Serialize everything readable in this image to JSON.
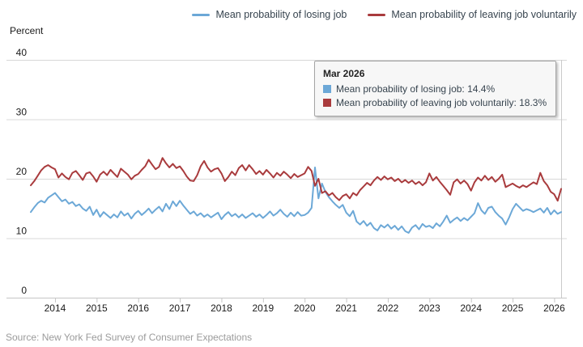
{
  "legend": {
    "items": [
      {
        "label": "Mean probability of losing job",
        "color": "#6CA8D7"
      },
      {
        "label": "Mean probability of leaving job voluntarily",
        "color": "#A93B3D"
      }
    ]
  },
  "axis": {
    "y_title": "Percent",
    "y_ticks": [
      40,
      30,
      20,
      10,
      0
    ],
    "x_ticks": [
      "2014",
      "2015",
      "2016",
      "2017",
      "2018",
      "2019",
      "2020",
      "2021",
      "2022",
      "2023",
      "2024",
      "2025",
      "2026"
    ]
  },
  "tooltip": {
    "title": "Mar 2026",
    "items": [
      {
        "text": "Mean probability of losing job: 14.4%",
        "value": "14.4%",
        "color": "#6CA8D7"
      },
      {
        "text": "Mean probability of leaving job voluntarily: 18.3%",
        "value": "18.3%",
        "color": "#A93B3D"
      }
    ]
  },
  "source": "Source: New York Fed Survey of Consumer Expectations",
  "colors": {
    "gridline": "#d8d8d8",
    "axis_line": "#c6c6c6",
    "tick_mark": "#c6c6c6",
    "crosshair": "#cacaca",
    "tick_label": "#1a1a1a"
  },
  "chart_data": {
    "type": "line",
    "title": "",
    "ylabel": "Percent",
    "ylim": [
      0,
      40
    ],
    "grid": true,
    "legend_position": "top-right",
    "x_start": "2013-06",
    "x_end": "2026-03",
    "frequency": "monthly",
    "highlighted_point": {
      "date": "Mar 2026",
      "losing_job": 14.4,
      "leaving_voluntarily": 18.3
    },
    "series": [
      {
        "name": "Mean probability of losing job",
        "color": "#6CA8D7",
        "values": [
          14.4,
          15.2,
          15.9,
          16.3,
          16.0,
          16.8,
          17.2,
          17.6,
          16.9,
          16.2,
          16.5,
          15.8,
          16.1,
          15.4,
          15.7,
          15.0,
          14.6,
          15.3,
          13.9,
          14.8,
          13.6,
          14.4,
          13.9,
          13.4,
          14.0,
          13.5,
          14.5,
          13.8,
          14.2,
          13.3,
          14.1,
          14.6,
          13.9,
          14.4,
          15.0,
          14.2,
          14.8,
          15.3,
          14.5,
          15.8,
          14.9,
          16.2,
          15.4,
          16.3,
          15.5,
          14.8,
          14.1,
          14.5,
          13.8,
          14.2,
          13.6,
          14.0,
          13.5,
          13.9,
          14.3,
          13.2,
          13.9,
          14.4,
          13.7,
          14.1,
          13.5,
          14.0,
          13.4,
          13.8,
          14.2,
          13.6,
          14.0,
          13.4,
          13.9,
          14.5,
          13.8,
          14.2,
          14.8,
          14.1,
          13.6,
          14.3,
          13.7,
          14.4,
          13.8,
          13.9,
          14.3,
          15.1,
          21.9,
          16.7,
          19.2,
          17.8,
          16.9,
          16.2,
          15.6,
          15.1,
          15.6,
          14.3,
          13.7,
          14.6,
          12.8,
          12.3,
          12.9,
          12.1,
          12.6,
          11.7,
          11.3,
          12.2,
          11.8,
          12.3,
          11.6,
          12.1,
          11.4,
          12.0,
          11.2,
          10.9,
          11.8,
          12.2,
          11.5,
          12.4,
          11.9,
          12.1,
          11.7,
          12.5,
          12.0,
          12.8,
          13.8,
          12.6,
          13.1,
          13.5,
          12.9,
          13.4,
          13.0,
          13.6,
          14.2,
          15.9,
          14.7,
          14.1,
          15.1,
          15.3,
          14.4,
          13.8,
          13.3,
          12.3,
          13.5,
          14.9,
          15.8,
          15.2,
          14.6,
          14.9,
          14.7,
          14.4,
          14.7,
          15.0,
          14.3,
          15.1,
          14.0,
          14.7,
          14.1,
          14.4
        ]
      },
      {
        "name": "Mean probability of leaving job voluntarily",
        "color": "#A93B3D",
        "values": [
          18.9,
          19.6,
          20.5,
          21.4,
          22.0,
          22.3,
          21.9,
          21.6,
          20.2,
          20.9,
          20.3,
          19.9,
          21.0,
          21.3,
          20.6,
          19.8,
          20.9,
          21.1,
          20.4,
          19.5,
          20.7,
          21.2,
          20.6,
          21.5,
          20.9,
          20.3,
          21.7,
          21.2,
          20.7,
          19.9,
          20.5,
          20.8,
          21.5,
          22.1,
          23.2,
          22.4,
          21.6,
          22.0,
          23.5,
          22.6,
          21.9,
          22.5,
          21.8,
          22.1,
          21.3,
          20.4,
          19.7,
          19.6,
          20.6,
          22.1,
          23.0,
          21.9,
          21.2,
          21.6,
          21.8,
          20.9,
          19.6,
          20.3,
          21.2,
          20.6,
          21.8,
          22.3,
          21.4,
          22.3,
          21.6,
          20.8,
          21.3,
          20.7,
          21.5,
          20.9,
          20.2,
          21.0,
          20.5,
          21.2,
          20.7,
          20.1,
          20.8,
          20.3,
          20.6,
          20.9,
          22.0,
          21.3,
          18.8,
          20.0,
          17.6,
          17.9,
          17.2,
          17.6,
          16.9,
          16.4,
          17.1,
          17.4,
          16.7,
          17.6,
          17.2,
          18.1,
          18.7,
          19.3,
          18.9,
          19.7,
          20.3,
          19.8,
          20.4,
          19.9,
          20.2,
          19.6,
          20.0,
          19.4,
          19.8,
          19.3,
          19.7,
          19.1,
          19.5,
          18.9,
          19.4,
          20.9,
          19.7,
          20.3,
          19.5,
          18.8,
          18.1,
          17.3,
          19.4,
          19.9,
          19.2,
          19.7,
          19.1,
          18.0,
          19.4,
          20.2,
          19.7,
          20.5,
          19.8,
          20.3,
          19.5,
          20.0,
          20.7,
          18.6,
          18.9,
          19.2,
          18.8,
          18.5,
          18.9,
          18.6,
          19.0,
          19.4,
          19.1,
          21.0,
          19.6,
          18.9,
          17.8,
          17.4,
          16.3,
          18.3
        ]
      }
    ]
  }
}
